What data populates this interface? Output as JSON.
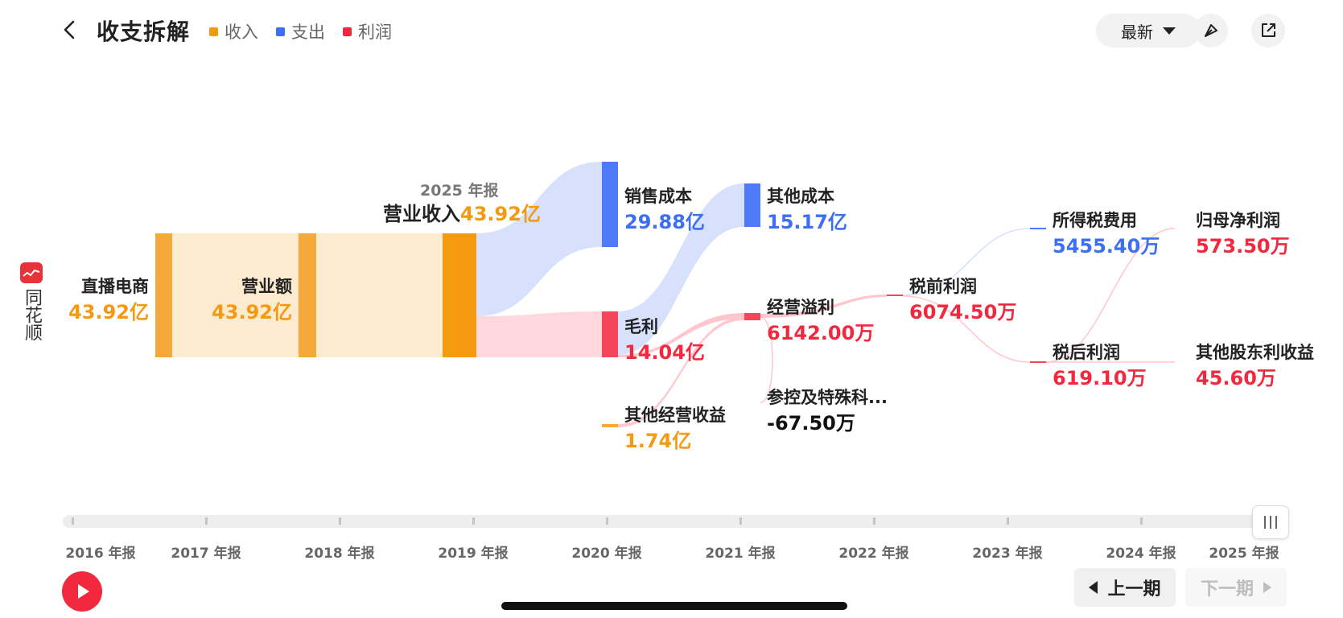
{
  "header": {
    "title": "收支拆解",
    "legend": [
      {
        "label": "收入",
        "color": "#f39a12"
      },
      {
        "label": "支出",
        "color": "#3d6ff5"
      },
      {
        "label": "利润",
        "color": "#f2283f"
      }
    ],
    "sort_label": "最新",
    "icons": [
      "back-icon",
      "share-link-icon",
      "external-open-icon"
    ]
  },
  "brand": {
    "name": "同花顺"
  },
  "sankey": {
    "report_label": "2025 年报",
    "revenue_name": "营业收入",
    "revenue_value": "43.92亿",
    "nodes": {
      "live_ecommerce": {
        "name": "直播电商",
        "value": "43.92亿"
      },
      "operating_amount": {
        "name": "营业额",
        "value": "43.92亿"
      },
      "sales_cost": {
        "name": "销售成本",
        "value": "29.88亿"
      },
      "gross_profit": {
        "name": "毛利",
        "value": "14.04亿"
      },
      "other_op_income": {
        "name": "其他经营收益",
        "value": "1.74亿"
      },
      "other_cost": {
        "name": "其他成本",
        "value": "15.17亿"
      },
      "op_surplus": {
        "name": "经营溢利",
        "value": "6142.00万"
      },
      "associates_special": {
        "name": "参控及特殊科...",
        "value": "-67.50万"
      },
      "pretax_profit": {
        "name": "税前利润",
        "value": "6074.50万"
      },
      "income_tax": {
        "name": "所得税费用",
        "value": "5455.40万"
      },
      "aftertax_profit": {
        "name": "税后利润",
        "value": "619.10万"
      },
      "parent_net_profit": {
        "name": "归母净利润",
        "value": "573.50万"
      },
      "minority_profit": {
        "name": "其他股东利收益",
        "value": "45.60万"
      }
    }
  },
  "timeline": {
    "years": [
      "2016 年报",
      "2017 年报",
      "2018 年报",
      "2019 年报",
      "2020 年报",
      "2021 年报",
      "2022 年报",
      "2023 年报",
      "2024 年报",
      "2025 年报"
    ],
    "prev_label": "上一期",
    "next_label": "下一期"
  }
}
